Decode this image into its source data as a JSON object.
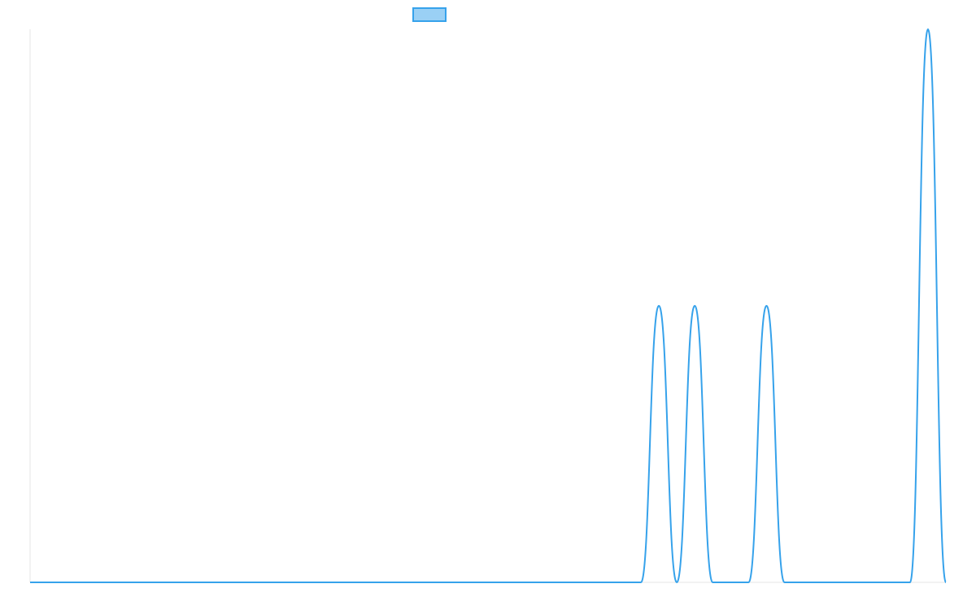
{
  "colors": {
    "line": "#36a2eb",
    "legend_fill": "#9ad0f5",
    "axis": "#e5e5e5",
    "background": "#ffffff"
  },
  "chart_data": {
    "type": "line",
    "title": "",
    "xlabel": "",
    "ylabel": "",
    "grid": false,
    "legend_position": "top",
    "series": [
      {
        "name": "",
        "x": [
          0,
          681,
          701,
          721,
          741,
          761,
          801,
          821,
          841,
          901,
          981,
          1001,
          1021
        ],
        "y": [
          0,
          0,
          1,
          0,
          1,
          0,
          0,
          1,
          0,
          0,
          0,
          2,
          0
        ]
      }
    ],
    "xlim": [
      0,
      1021
    ],
    "ylim": [
      0,
      2
    ]
  }
}
